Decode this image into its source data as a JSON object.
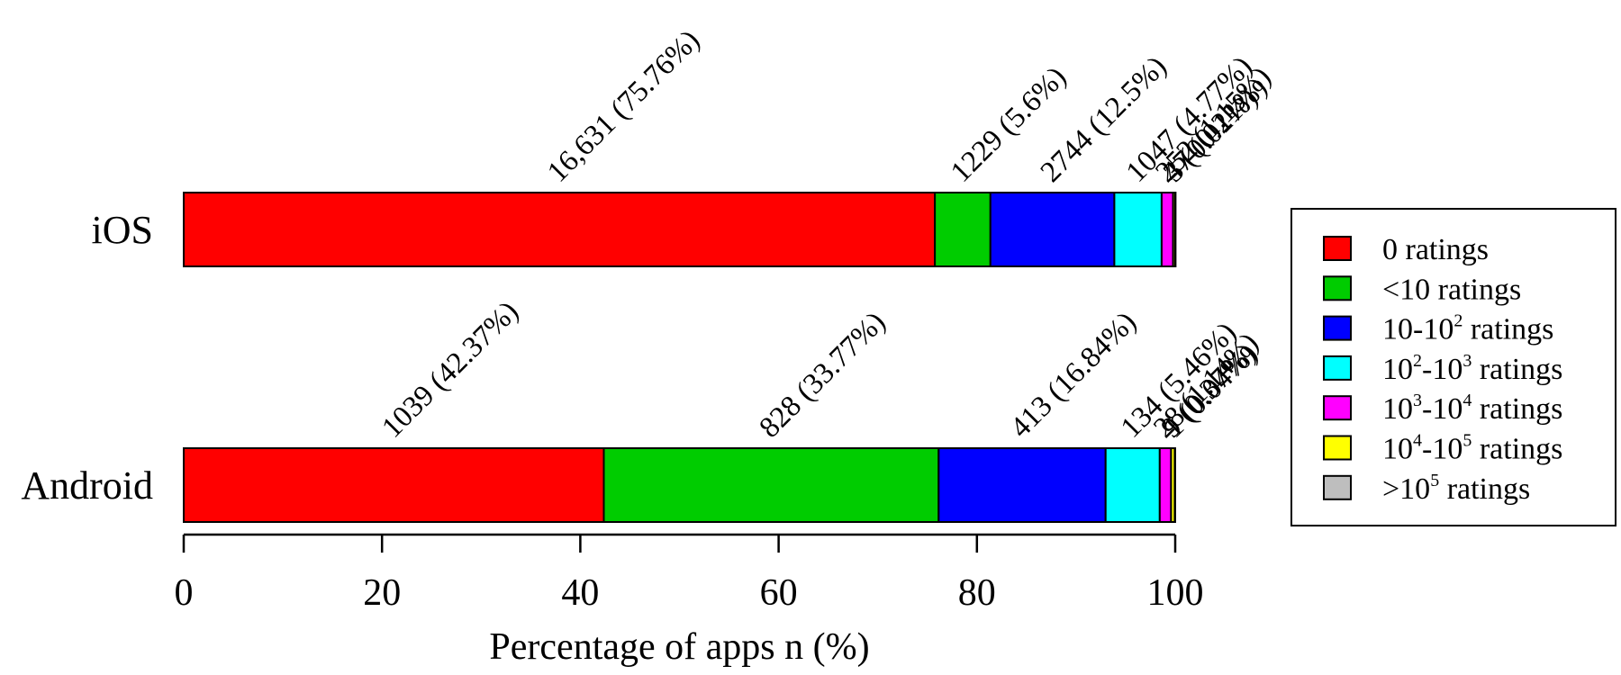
{
  "chart_data": {
    "type": "bar",
    "orientation": "horizontal",
    "stacked": true,
    "categories": [
      "iOS",
      "Android"
    ],
    "xlabel": "Percentage of apps n (%)",
    "xlim": [
      0,
      100
    ],
    "xticks": [
      "0",
      "20",
      "40",
      "60",
      "80",
      "100"
    ],
    "grid": false,
    "legend_position": "right",
    "series": [
      {
        "name": "0 ratings",
        "color": "#ff0000",
        "values": [
          75.76,
          42.37
        ],
        "labels": [
          "16,631 (75.76%)",
          "1039 (42.37%)"
        ]
      },
      {
        "name": "<10 ratings",
        "color": "#00cc00",
        "values": [
          5.6,
          33.77
        ],
        "labels": [
          "1229 (5.6%)",
          "828 (33.77%)"
        ]
      },
      {
        "name": "10-10^2 ratings",
        "color": "#0000ff",
        "values": [
          12.5,
          16.84
        ],
        "labels": [
          "2744 (12.5%)",
          "413 (16.84%)"
        ]
      },
      {
        "name": "10^2-10^3 ratings",
        "color": "#00ffff",
        "values": [
          4.77,
          5.46
        ],
        "labels": [
          "1047 (4.77%)",
          "134 (5.46%)"
        ]
      },
      {
        "name": "10^3-10^4 ratings",
        "color": "#ff00ff",
        "values": [
          1.15,
          1.14
        ],
        "labels": [
          "252 (1.15%)",
          "28 (1.14%)"
        ]
      },
      {
        "name": "10^4-10^5 ratings",
        "color": "#ffff00",
        "values": [
          0.21,
          0.37
        ],
        "labels": [
          "47 (0.21%)",
          "9 (0.37%)"
        ]
      },
      {
        "name": ">10^5 ratings",
        "color": "#bebebe",
        "values": [
          0.01,
          0.04
        ],
        "labels": [
          "3 (0.01%)",
          "1 (0.04%)"
        ]
      }
    ],
    "legend": [
      {
        "parts": [
          [
            "0 ratings",
            ""
          ]
        ]
      },
      {
        "parts": [
          [
            "<10 ratings",
            ""
          ]
        ]
      },
      {
        "parts": [
          [
            "10-10",
            ""
          ],
          [
            "2",
            "sup"
          ],
          [
            " ratings",
            ""
          ]
        ]
      },
      {
        "parts": [
          [
            "10",
            ""
          ],
          [
            "2",
            "sup"
          ],
          [
            "-10",
            ""
          ],
          [
            "3",
            "sup"
          ],
          [
            " ratings",
            ""
          ]
        ]
      },
      {
        "parts": [
          [
            "10",
            ""
          ],
          [
            "3",
            "sup"
          ],
          [
            "-10",
            ""
          ],
          [
            "4",
            "sup"
          ],
          [
            " ratings",
            ""
          ]
        ]
      },
      {
        "parts": [
          [
            "10",
            ""
          ],
          [
            "4",
            "sup"
          ],
          [
            "-10",
            ""
          ],
          [
            "5",
            "sup"
          ],
          [
            " ratings",
            ""
          ]
        ]
      },
      {
        "parts": [
          [
            ">10",
            ""
          ],
          [
            "5",
            "sup"
          ],
          [
            " ratings",
            ""
          ]
        ]
      }
    ]
  }
}
